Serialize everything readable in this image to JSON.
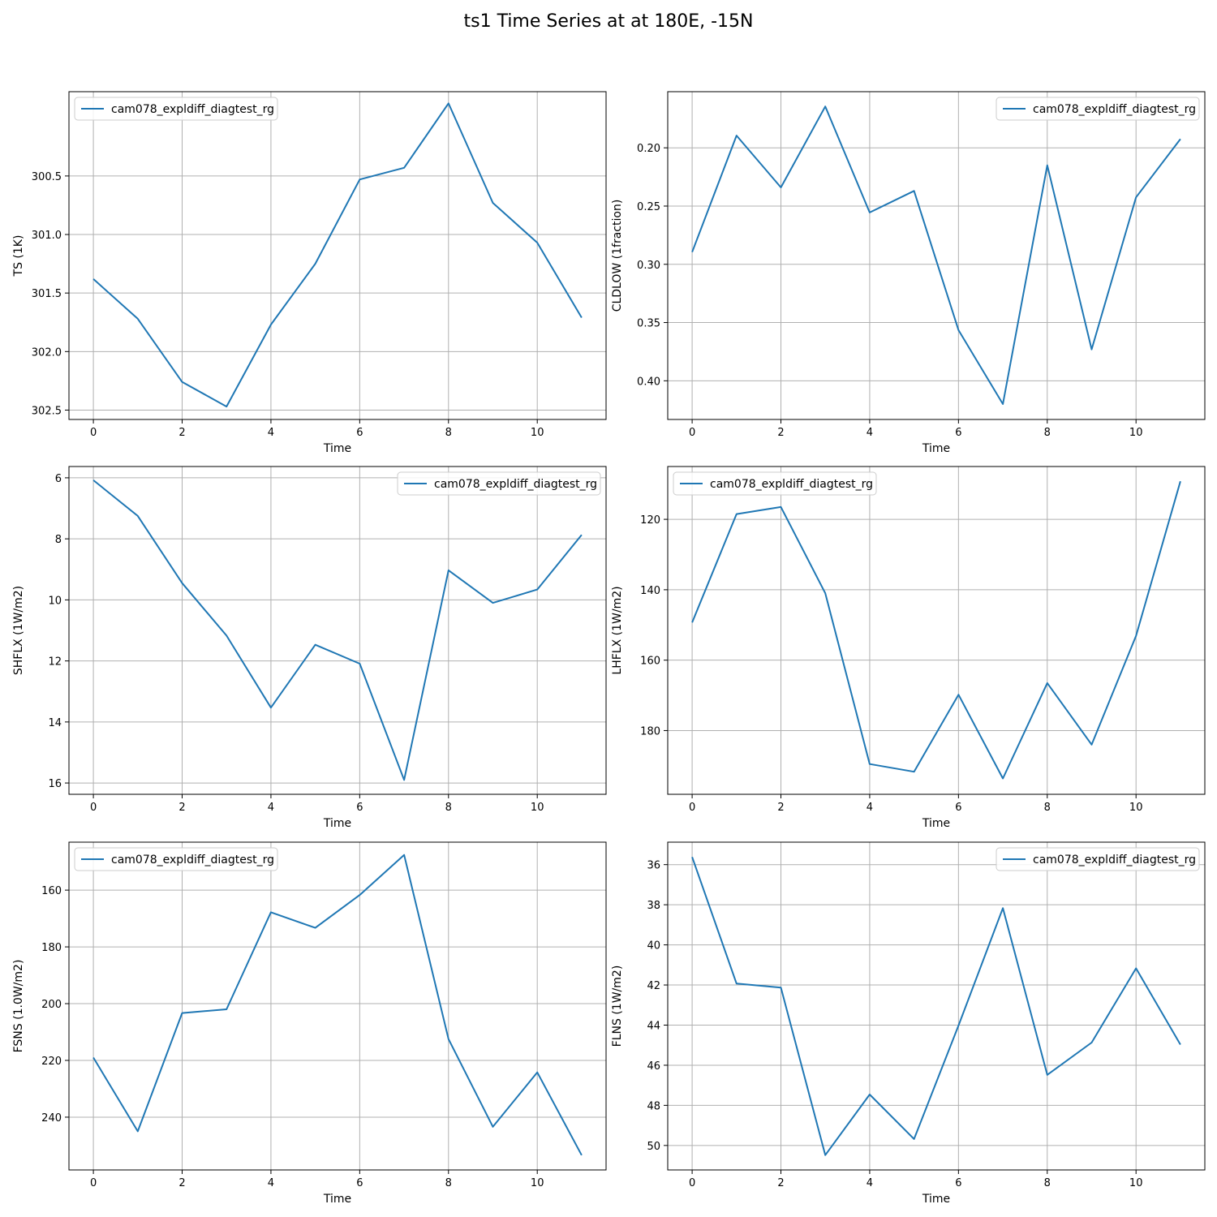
{
  "figure": {
    "title": "ts1 Time Series at at 180E, -15N"
  },
  "colors": {
    "series": "#1f77b4",
    "grid": "#b0b0b0",
    "axis": "#000000"
  },
  "chart_data": [
    {
      "type": "line",
      "xlabel": "Time",
      "ylabel": "TS (1K)",
      "xlim": [
        -0.55,
        11.55
      ],
      "ylim": [
        302.58,
        299.78
      ],
      "y_inverted": true,
      "xticks": [
        0,
        2,
        4,
        6,
        8,
        10
      ],
      "yticks": [
        300.5,
        301.0,
        301.5,
        302.0,
        302.5
      ],
      "ytick_labels": [
        "300.5",
        "301.0",
        "301.5",
        "302.0",
        "302.5"
      ],
      "grid": true,
      "legend": "top-left",
      "series": [
        {
          "name": "cam078_expldiff_diagtest_rg",
          "x": [
            0,
            1,
            2,
            3,
            4,
            5,
            6,
            7,
            8,
            9,
            10,
            11
          ],
          "y": [
            301.38,
            301.72,
            302.26,
            302.47,
            301.77,
            301.25,
            300.53,
            300.43,
            299.88,
            300.73,
            301.07,
            301.71
          ]
        }
      ]
    },
    {
      "type": "line",
      "xlabel": "Time",
      "ylabel": "CLDLOW (1fraction)",
      "xlim": [
        -0.55,
        11.55
      ],
      "ylim": [
        0.4332,
        0.1518
      ],
      "y_inverted": true,
      "xticks": [
        0,
        2,
        4,
        6,
        8,
        10
      ],
      "yticks": [
        0.2,
        0.25,
        0.3,
        0.35,
        0.4
      ],
      "ytick_labels": [
        "0.20",
        "0.25",
        "0.30",
        "0.35",
        "0.40"
      ],
      "grid": true,
      "legend": "top-right",
      "series": [
        {
          "name": "cam078_expldiff_diagtest_rg",
          "x": [
            0,
            1,
            2,
            3,
            4,
            5,
            6,
            7,
            8,
            9,
            10,
            11
          ],
          "y": [
            0.2895,
            0.1895,
            0.234,
            0.1645,
            0.2555,
            0.237,
            0.3565,
            0.42,
            0.215,
            0.373,
            0.2425,
            0.1925
          ]
        }
      ]
    },
    {
      "type": "line",
      "xlabel": "Time",
      "ylabel": "SHFLX (1W/m2)",
      "xlim": [
        -0.55,
        11.55
      ],
      "ylim": [
        16.37,
        5.63
      ],
      "y_inverted": true,
      "xticks": [
        0,
        2,
        4,
        6,
        8,
        10
      ],
      "yticks": [
        6,
        8,
        10,
        12,
        14,
        16
      ],
      "ytick_labels": [
        "6",
        "8",
        "10",
        "12",
        "14",
        "16"
      ],
      "grid": true,
      "legend": "top-right",
      "series": [
        {
          "name": "cam078_expldiff_diagtest_rg",
          "x": [
            0,
            1,
            2,
            3,
            4,
            5,
            6,
            7,
            8,
            9,
            10,
            11
          ],
          "y": [
            6.08,
            7.25,
            9.45,
            11.17,
            13.53,
            11.47,
            12.09,
            15.9,
            9.03,
            10.1,
            9.66,
            7.87
          ]
        }
      ]
    },
    {
      "type": "line",
      "xlabel": "Time",
      "ylabel": "LHFLX (1W/m2)",
      "xlim": [
        -0.55,
        11.55
      ],
      "ylim": [
        198.1,
        105.0
      ],
      "y_inverted": true,
      "xticks": [
        0,
        2,
        4,
        6,
        8,
        10
      ],
      "yticks": [
        120,
        140,
        160,
        180
      ],
      "ytick_labels": [
        "120",
        "140",
        "160",
        "180"
      ],
      "grid": true,
      "legend": "top-left",
      "series": [
        {
          "name": "cam078_expldiff_diagtest_rg",
          "x": [
            0,
            1,
            2,
            3,
            4,
            5,
            6,
            7,
            8,
            9,
            10,
            11
          ],
          "y": [
            149.3,
            118.5,
            116.5,
            141.0,
            189.5,
            191.7,
            169.8,
            193.6,
            166.5,
            184.0,
            153.1,
            109.2
          ]
        }
      ]
    },
    {
      "type": "line",
      "xlabel": "Time",
      "ylabel": "FSNS (1.0W/m2)",
      "xlim": [
        -0.55,
        11.55
      ],
      "ylim": [
        258.6,
        143.1
      ],
      "y_inverted": true,
      "xticks": [
        0,
        2,
        4,
        6,
        8,
        10
      ],
      "yticks": [
        160,
        180,
        200,
        220,
        240
      ],
      "ytick_labels": [
        "160",
        "180",
        "200",
        "220",
        "240"
      ],
      "grid": true,
      "legend": "top-left",
      "series": [
        {
          "name": "cam078_expldiff_diagtest_rg",
          "x": [
            0,
            1,
            2,
            3,
            4,
            5,
            6,
            7,
            8,
            9,
            10,
            11
          ],
          "y": [
            219.0,
            245.0,
            203.3,
            202.0,
            167.8,
            173.3,
            161.7,
            147.6,
            212.5,
            243.4,
            224.2,
            253.4
          ]
        }
      ]
    },
    {
      "type": "line",
      "xlabel": "Time",
      "ylabel": "FLNS (1W/m2)",
      "xlim": [
        -0.55,
        11.55
      ],
      "ylim": [
        51.22,
        34.88
      ],
      "y_inverted": true,
      "xticks": [
        0,
        2,
        4,
        6,
        8,
        10
      ],
      "yticks": [
        36,
        38,
        40,
        42,
        44,
        46,
        48,
        50
      ],
      "ytick_labels": [
        "36",
        "38",
        "40",
        "42",
        "44",
        "46",
        "48",
        "50"
      ],
      "grid": true,
      "legend": "top-right",
      "series": [
        {
          "name": "cam078_expldiff_diagtest_rg",
          "x": [
            0,
            1,
            2,
            3,
            4,
            5,
            6,
            7,
            8,
            9,
            10,
            11
          ],
          "y": [
            35.62,
            41.93,
            42.13,
            50.48,
            47.46,
            49.68,
            44.02,
            38.17,
            46.48,
            44.87,
            41.17,
            44.97
          ]
        }
      ]
    }
  ]
}
